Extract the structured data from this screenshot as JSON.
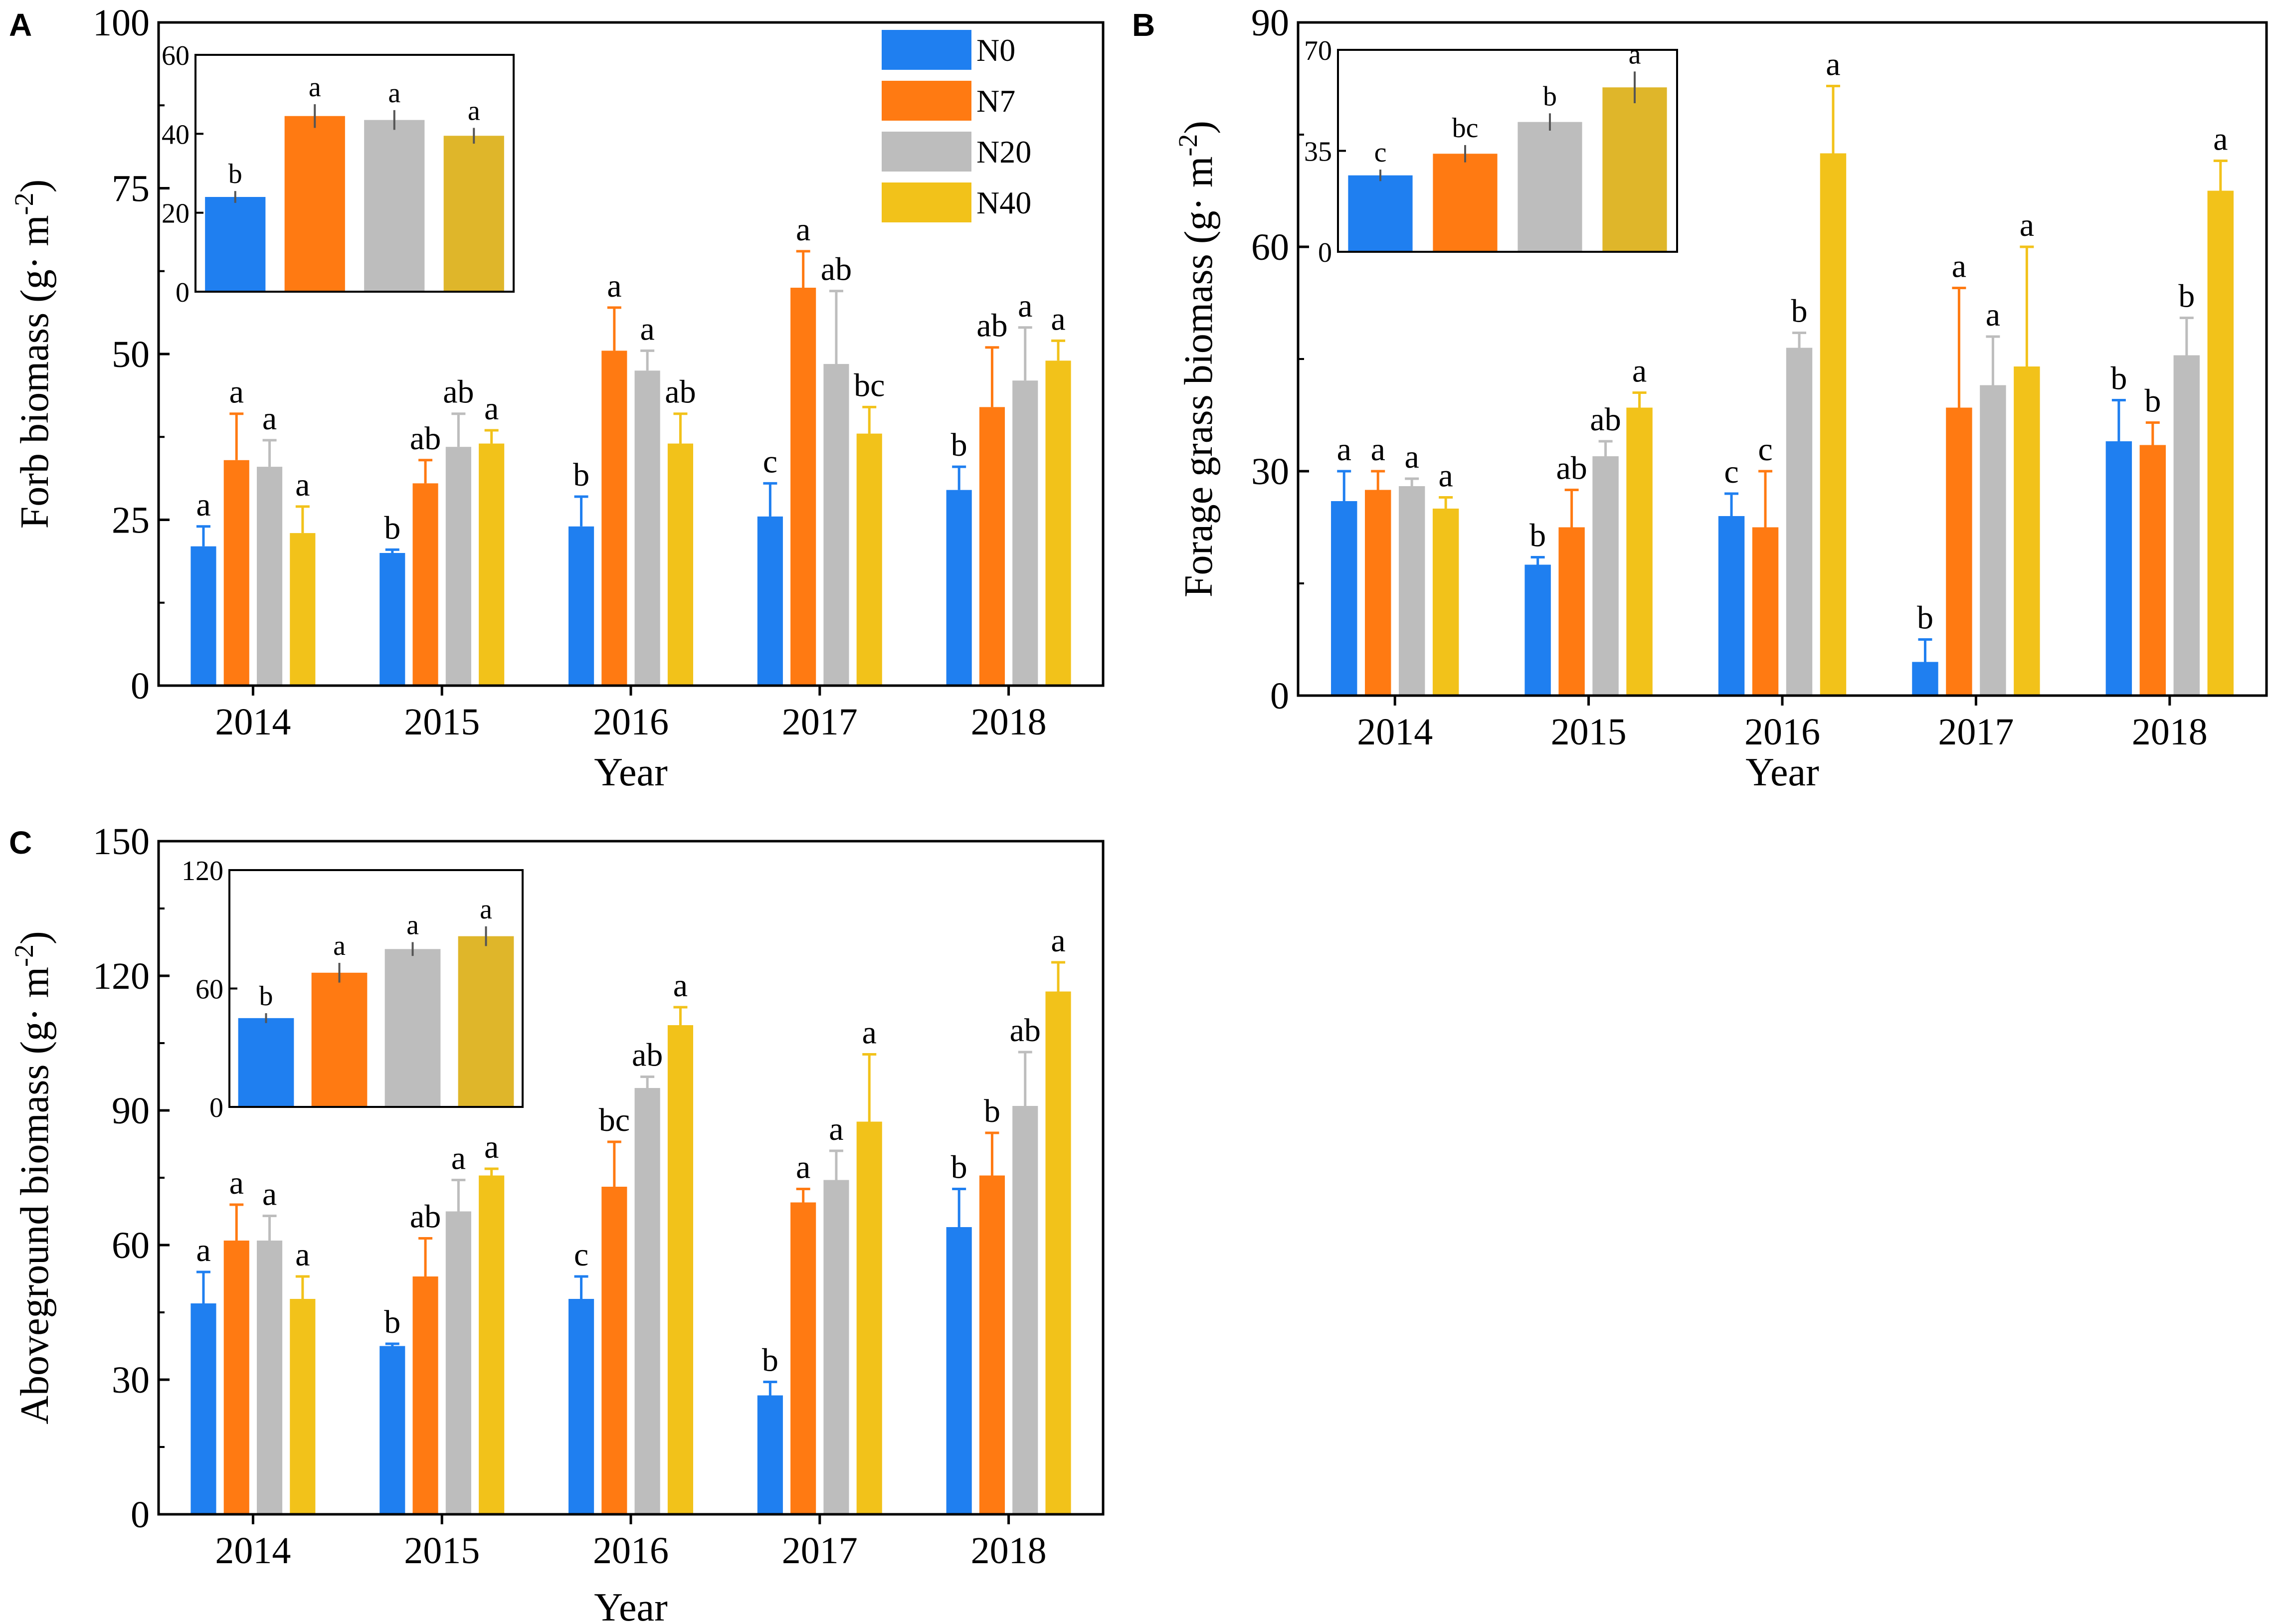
{
  "legend": [
    {
      "name": "N0",
      "color": "#1f7ff0"
    },
    {
      "name": "N7",
      "color": "#ff7a12"
    },
    {
      "name": "N20",
      "color": "#bdbdbd"
    },
    {
      "name": "N40",
      "color": "#f2c21a"
    }
  ],
  "inset_colors": [
    "#1f7ff0",
    "#ff7a12",
    "#bdbdbd",
    "#dfb62a"
  ],
  "chart_data": [
    {
      "type": "bar",
      "panel": "A",
      "xlabel": "Year",
      "ylabel_main": "Forb biomass (g· m",
      "ylabel_sup": "-2",
      "ylabel_end": ")",
      "ylim": [
        0,
        100
      ],
      "yticks": [
        0,
        25,
        50,
        75,
        100
      ],
      "categories": [
        "2014",
        "2015",
        "2016",
        "2017",
        "2018"
      ],
      "series": [
        {
          "name": "N0",
          "values": [
            21,
            20,
            24,
            25.5,
            29.5
          ],
          "errors": [
            3,
            0.5,
            4.5,
            5,
            3.5
          ],
          "letters": [
            "a",
            "b",
            "b",
            "c",
            "b"
          ]
        },
        {
          "name": "N7",
          "values": [
            34,
            30.5,
            50.5,
            60,
            42
          ],
          "errors": [
            7,
            3.5,
            6.5,
            5.5,
            9
          ],
          "letters": [
            "a",
            "ab",
            "a",
            "a",
            "ab"
          ]
        },
        {
          "name": "N20",
          "values": [
            33,
            36,
            47.5,
            48.5,
            46
          ],
          "errors": [
            4,
            5,
            3,
            11,
            8
          ],
          "letters": [
            "a",
            "ab",
            "a",
            "ab",
            "a"
          ]
        },
        {
          "name": "N40",
          "values": [
            23,
            36.5,
            36.5,
            38,
            49
          ],
          "errors": [
            4,
            2,
            4.5,
            4,
            3
          ],
          "letters": [
            "a",
            "a",
            "ab",
            "bc",
            "a"
          ]
        }
      ],
      "inset": {
        "ylim": [
          0,
          60
        ],
        "yticks": [
          0,
          20,
          40,
          60
        ],
        "values": [
          24,
          44.5,
          43.5,
          39.5
        ],
        "errors": [
          1.5,
          3,
          2.5,
          2
        ],
        "letters": [
          "b",
          "a",
          "a",
          "a"
        ]
      }
    },
    {
      "type": "bar",
      "panel": "B",
      "xlabel": "Year",
      "ylabel_main": "Forage grass biomass (g· m",
      "ylabel_sup": "-2",
      "ylabel_end": ")",
      "ylim": [
        0,
        90
      ],
      "yticks": [
        0,
        30,
        60,
        90
      ],
      "categories": [
        "2014",
        "2015",
        "2016",
        "2017",
        "2018"
      ],
      "series": [
        {
          "name": "N0",
          "values": [
            26,
            17.5,
            24,
            4.5,
            34
          ],
          "errors": [
            4,
            1,
            3,
            3,
            5.5
          ],
          "letters": [
            "a",
            "b",
            "c",
            "b",
            "b"
          ]
        },
        {
          "name": "N7",
          "values": [
            27.5,
            22.5,
            22.5,
            38.5,
            33.5
          ],
          "errors": [
            2.5,
            5,
            7.5,
            16,
            3
          ],
          "letters": [
            "a",
            "ab",
            "c",
            "a",
            "b"
          ]
        },
        {
          "name": "N20",
          "values": [
            28,
            32,
            46.5,
            41.5,
            45.5
          ],
          "errors": [
            1,
            2,
            2,
            6.5,
            5
          ],
          "letters": [
            "a",
            "ab",
            "b",
            "a",
            "b"
          ]
        },
        {
          "name": "N40",
          "values": [
            25,
            38.5,
            72.5,
            44,
            67.5
          ],
          "errors": [
            1.5,
            2,
            9,
            16,
            4
          ],
          "letters": [
            "a",
            "a",
            "a",
            "a",
            "a"
          ]
        }
      ],
      "inset": {
        "ylim": [
          0,
          70
        ],
        "yticks": [
          0,
          35,
          70
        ],
        "values": [
          26.5,
          34,
          45,
          57
        ],
        "errors": [
          2,
          3,
          3,
          5.5
        ],
        "letters": [
          "c",
          "bc",
          "b",
          "a"
        ]
      }
    },
    {
      "type": "bar",
      "panel": "C",
      "xlabel": "Year",
      "ylabel_main": "Aboveground biomass (g· m",
      "ylabel_sup": "-2",
      "ylabel_end": ")",
      "ylim": [
        0,
        150
      ],
      "yticks": [
        0,
        30,
        60,
        90,
        120,
        150
      ],
      "categories": [
        "2014",
        "2015",
        "2016",
        "2017",
        "2018"
      ],
      "series": [
        {
          "name": "N0",
          "values": [
            47,
            37.5,
            48,
            26.5,
            64
          ],
          "errors": [
            7,
            0.5,
            5,
            3,
            8.5
          ],
          "letters": [
            "a",
            "b",
            "c",
            "b",
            "b"
          ]
        },
        {
          "name": "N7",
          "values": [
            61,
            53,
            73,
            69.5,
            75.5
          ],
          "errors": [
            8,
            8.5,
            10,
            3,
            9.5
          ],
          "letters": [
            "a",
            "ab",
            "bc",
            "a",
            "b"
          ]
        },
        {
          "name": "N20",
          "values": [
            61,
            67.5,
            95,
            74.5,
            91
          ],
          "errors": [
            5.5,
            7,
            2.5,
            6.5,
            12
          ],
          "letters": [
            "a",
            "a",
            "ab",
            "a",
            "ab"
          ]
        },
        {
          "name": "N40",
          "values": [
            48,
            75.5,
            109,
            87.5,
            116.5
          ],
          "errors": [
            5,
            1.5,
            4,
            15,
            6.5
          ],
          "letters": [
            "a",
            "a",
            "a",
            "a",
            "a"
          ]
        }
      ],
      "inset": {
        "ylim": [
          0,
          120
        ],
        "yticks": [
          0,
          60,
          120
        ],
        "values": [
          45,
          68,
          80,
          86.5
        ],
        "errors": [
          2.5,
          5,
          3.5,
          5
        ],
        "letters": [
          "b",
          "a",
          "a",
          "a"
        ]
      }
    }
  ]
}
